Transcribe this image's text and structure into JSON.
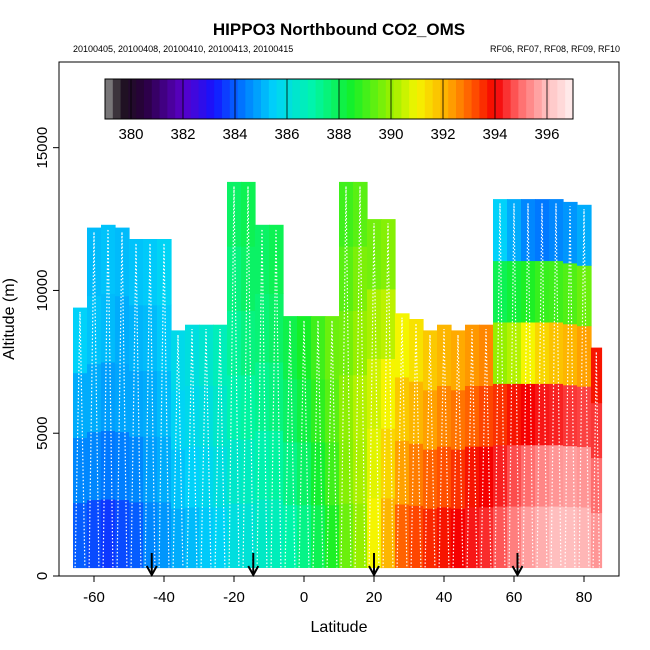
{
  "chart_data": {
    "type": "heatmap",
    "title": "HIPPO3 Northbound CO2_OMS",
    "subtitle_left": "20100405, 20100408, 20100410, 20100413, 20100415",
    "subtitle_right": "RF06, RF07, RF08, RF09, RF10",
    "xlabel": "Latitude",
    "ylabel": "Altitude (m)",
    "xlim": [
      -70,
      90
    ],
    "ylim": [
      0,
      18000
    ],
    "x_ticks": [
      -60,
      -40,
      -20,
      0,
      20,
      40,
      60,
      80
    ],
    "y_ticks": [
      0,
      5000,
      10000,
      15000
    ],
    "colorbar": {
      "range": [
        379,
        397
      ],
      "ticks": [
        380,
        382,
        384,
        386,
        388,
        390,
        392,
        394,
        396
      ],
      "placement": "top, inside plot"
    },
    "legend_arrows_at_latitude": [
      -43.5,
      -14.5,
      20,
      61
    ],
    "profiles": [
      {
        "lat_min": -66,
        "lat_max": -62,
        "top": 9400,
        "values_bottom_to_top": [
          384.0,
          384.5,
          385.0,
          385.5
        ]
      },
      {
        "lat_min": -62,
        "lat_max": -58,
        "top": 12200,
        "values_bottom_to_top": [
          383.8,
          384.5,
          385.0,
          385.3,
          385.2
        ]
      },
      {
        "lat_min": -58,
        "lat_max": -54,
        "top": 12300,
        "values_bottom_to_top": [
          383.6,
          384.3,
          384.8,
          385.2,
          385.3
        ]
      },
      {
        "lat_min": -54,
        "lat_max": -50,
        "top": 12200,
        "values_bottom_to_top": [
          383.8,
          384.4,
          384.9,
          385.0,
          385.2
        ]
      },
      {
        "lat_min": -50,
        "lat_max": -46,
        "top": 11800,
        "values_bottom_to_top": [
          384.0,
          384.5,
          384.9,
          385.1,
          385.3
        ]
      },
      {
        "lat_min": -46,
        "lat_max": -42,
        "top": 11800,
        "values_bottom_to_top": [
          384.5,
          384.8,
          385.0,
          385.2,
          385.4
        ]
      },
      {
        "lat_min": -42,
        "lat_max": -38,
        "top": 11800,
        "values_bottom_to_top": [
          384.7,
          385.0,
          385.2,
          385.4,
          385.6
        ]
      },
      {
        "lat_min": -38,
        "lat_max": -34,
        "top": 8600,
        "values_bottom_to_top": [
          385.0,
          385.3,
          385.6,
          385.8
        ]
      },
      {
        "lat_min": -34,
        "lat_max": -30,
        "top": 8800,
        "values_bottom_to_top": [
          385.2,
          385.5,
          385.8,
          386.0
        ]
      },
      {
        "lat_min": -30,
        "lat_max": -26,
        "top": 8800,
        "values_bottom_to_top": [
          385.4,
          385.7,
          386.0,
          386.3
        ]
      },
      {
        "lat_min": -26,
        "lat_max": -22,
        "top": 8800,
        "values_bottom_to_top": [
          385.6,
          386.0,
          386.4,
          386.7
        ]
      },
      {
        "lat_min": -22,
        "lat_max": -18,
        "top": 13800,
        "values_bottom_to_top": [
          386.0,
          386.4,
          386.9,
          387.2,
          387.5,
          387.8
        ]
      },
      {
        "lat_min": -18,
        "lat_max": -14,
        "top": 13800,
        "values_bottom_to_top": [
          386.2,
          386.6,
          387.1,
          387.5,
          387.8,
          388.0
        ]
      },
      {
        "lat_min": -14,
        "lat_max": -10,
        "top": 12300,
        "values_bottom_to_top": [
          386.5,
          386.9,
          387.3,
          387.6,
          387.8
        ]
      },
      {
        "lat_min": -10,
        "lat_max": -6,
        "top": 12300,
        "values_bottom_to_top": [
          386.7,
          387.1,
          387.5,
          387.8,
          388.0
        ]
      },
      {
        "lat_min": -6,
        "lat_max": -2,
        "top": 9100,
        "values_bottom_to_top": [
          387.0,
          387.4,
          387.8,
          388.1
        ]
      },
      {
        "lat_min": -2,
        "lat_max": 2,
        "top": 9100,
        "values_bottom_to_top": [
          387.4,
          387.8,
          388.2,
          388.5
        ]
      },
      {
        "lat_min": 2,
        "lat_max": 6,
        "top": 9100,
        "values_bottom_to_top": [
          388.0,
          388.4,
          388.8,
          389.0
        ]
      },
      {
        "lat_min": 6,
        "lat_max": 10,
        "top": 9100,
        "values_bottom_to_top": [
          388.6,
          389.0,
          389.3,
          389.5
        ]
      },
      {
        "lat_min": 10,
        "lat_max": 14,
        "top": 13800,
        "values_bottom_to_top": [
          389.5,
          389.8,
          389.9,
          389.6,
          389.3,
          389.0
        ]
      },
      {
        "lat_min": 14,
        "lat_max": 18,
        "top": 13800,
        "values_bottom_to_top": [
          390.0,
          390.2,
          390.3,
          390.0,
          389.7,
          389.3
        ]
      },
      {
        "lat_min": 18,
        "lat_max": 22,
        "top": 12500,
        "values_bottom_to_top": [
          391.0,
          390.8,
          390.6,
          390.2,
          389.6
        ]
      },
      {
        "lat_min": 22,
        "lat_max": 26,
        "top": 12500,
        "values_bottom_to_top": [
          392.0,
          391.5,
          391.0,
          390.4,
          389.8
        ]
      },
      {
        "lat_min": 26,
        "lat_max": 30,
        "top": 9200,
        "values_bottom_to_top": [
          393.0,
          392.3,
          391.7,
          391.0
        ]
      },
      {
        "lat_min": 30,
        "lat_max": 34,
        "top": 9000,
        "values_bottom_to_top": [
          393.3,
          392.7,
          392.0,
          391.3
        ]
      },
      {
        "lat_min": 34,
        "lat_max": 38,
        "top": 8600,
        "values_bottom_to_top": [
          393.6,
          393.0,
          392.3,
          391.7
        ]
      },
      {
        "lat_min": 38,
        "lat_max": 42,
        "top": 8800,
        "values_bottom_to_top": [
          393.8,
          393.2,
          392.6,
          392.0
        ]
      },
      {
        "lat_min": 42,
        "lat_max": 46,
        "top": 8600,
        "values_bottom_to_top": [
          394.0,
          393.5,
          392.8,
          392.2
        ]
      },
      {
        "lat_min": 46,
        "lat_max": 50,
        "top": 8800,
        "values_bottom_to_top": [
          394.2,
          393.8,
          393.0,
          392.4
        ]
      },
      {
        "lat_min": 50,
        "lat_max": 54,
        "top": 8800,
        "values_bottom_to_top": [
          394.4,
          394.0,
          393.3,
          392.6
        ]
      },
      {
        "lat_min": 54,
        "lat_max": 58,
        "top": 13200,
        "values_bottom_to_top": [
          394.8,
          394.3,
          393.5,
          390.0,
          388.0,
          385.5
        ]
      },
      {
        "lat_min": 58,
        "lat_max": 62,
        "top": 13200,
        "values_bottom_to_top": [
          395.2,
          394.7,
          393.8,
          390.3,
          388.3,
          385.0
        ]
      },
      {
        "lat_min": 62,
        "lat_max": 66,
        "top": 13200,
        "values_bottom_to_top": [
          395.6,
          395.0,
          394.0,
          391.0,
          388.6,
          384.5
        ]
      },
      {
        "lat_min": 66,
        "lat_max": 70,
        "top": 13200,
        "values_bottom_to_top": [
          395.8,
          395.3,
          394.2,
          391.5,
          388.9,
          384.3
        ]
      },
      {
        "lat_min": 70,
        "lat_max": 74,
        "top": 13200,
        "values_bottom_to_top": [
          396.0,
          395.5,
          394.3,
          391.8,
          389.0,
          384.5
        ]
      },
      {
        "lat_min": 74,
        "lat_max": 78,
        "top": 13100,
        "values_bottom_to_top": [
          396.0,
          395.6,
          394.5,
          392.0,
          389.2,
          384.7
        ]
      },
      {
        "lat_min": 78,
        "lat_max": 82,
        "top": 13000,
        "values_bottom_to_top": [
          395.9,
          395.5,
          394.6,
          392.3,
          389.5,
          385.0
        ]
      },
      {
        "lat_min": 82,
        "lat_max": 85,
        "top": 8000,
        "values_bottom_to_top": [
          395.5,
          395.0,
          394.5,
          393.8
        ]
      }
    ]
  }
}
